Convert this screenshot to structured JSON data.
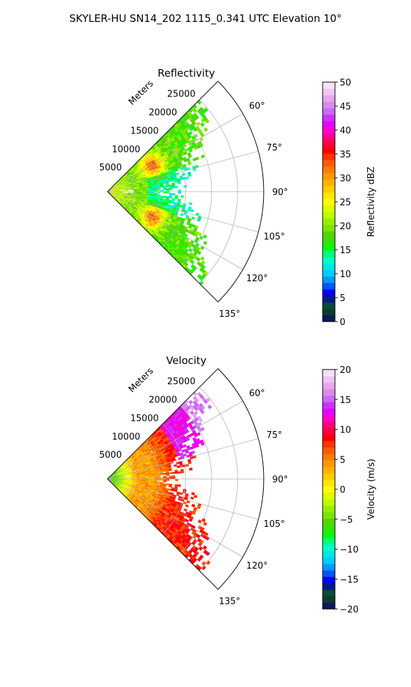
{
  "figure": {
    "title": "SKYLER-HU  SN14_202  1115_0.341 UTC Elevation 10°"
  },
  "chart_data": [
    {
      "type": "heatmap",
      "title": "Reflectivity",
      "range_axis_label": "Meters",
      "range_ticks": [
        5000,
        10000,
        15000,
        20000,
        25000
      ],
      "range_tick_labels": [
        "5000",
        "10000",
        "15000",
        "20000",
        "25000"
      ],
      "rlim": [
        0,
        30000
      ],
      "azimuth_range_deg": [
        45,
        135
      ],
      "angle_ticks": [
        60,
        75,
        90,
        105,
        120,
        135
      ],
      "angle_tick_labels": [
        "60°",
        "75°",
        "90°",
        "105°",
        "120°",
        "135°"
      ],
      "grid": true,
      "colorbar": {
        "label": "Reflectivity dBZ",
        "range": [
          0,
          50
        ],
        "ticks": [
          0,
          5,
          10,
          15,
          20,
          25,
          30,
          35,
          40,
          45,
          50
        ],
        "tick_labels": [
          "0",
          "5",
          "10",
          "15",
          "20",
          "25",
          "30",
          "35",
          "40",
          "45",
          "50"
        ],
        "colors": [
          "#0a1a5c",
          "#0d3b2a",
          "#0a4a3a",
          "#001a8a",
          "#0000ff",
          "#0055ff",
          "#0099ff",
          "#00ccff",
          "#00e5e5",
          "#00ffc8",
          "#00ff7a",
          "#00ff00",
          "#33e600",
          "#55d400",
          "#7ae600",
          "#99ee00",
          "#bbff00",
          "#ddff00",
          "#ffff00",
          "#ffe600",
          "#ffcc00",
          "#ffb300",
          "#ff9900",
          "#ff7a00",
          "#ff5a00",
          "#ff3300",
          "#ff0000",
          "#ff0040",
          "#ff0080",
          "#ff00cc",
          "#e600ff",
          "#cc33ff",
          "#cc66ff",
          "#d98ce6",
          "#e6a6ee",
          "#f0c6f5",
          "#f8e0fa"
        ]
      }
    },
    {
      "type": "heatmap",
      "title": "Velocity",
      "range_axis_label": "Meters",
      "range_ticks": [
        5000,
        10000,
        15000,
        20000,
        25000
      ],
      "range_tick_labels": [
        "5000",
        "10000",
        "15000",
        "20000",
        "25000"
      ],
      "rlim": [
        0,
        30000
      ],
      "azimuth_range_deg": [
        45,
        135
      ],
      "angle_ticks": [
        60,
        75,
        90,
        105,
        120,
        135
      ],
      "angle_tick_labels": [
        "60°",
        "75°",
        "90°",
        "105°",
        "120°",
        "135°"
      ],
      "grid": true,
      "colorbar": {
        "label": "Velocity (m/s)",
        "range": [
          -20,
          20
        ],
        "ticks": [
          -20,
          -15,
          -10,
          -5,
          0,
          5,
          10,
          15,
          20
        ],
        "tick_labels": [
          "−20",
          "−15",
          "−10",
          "−5",
          "0",
          "5",
          "10",
          "15",
          "20"
        ],
        "colors": [
          "#0a1a5c",
          "#0d3b2a",
          "#0a4a3a",
          "#001a8a",
          "#0000ff",
          "#0055ff",
          "#0099ff",
          "#00ccff",
          "#00e5e5",
          "#00ffc8",
          "#00ff7a",
          "#00ff00",
          "#33e600",
          "#55d400",
          "#7ae600",
          "#99ee00",
          "#bbff00",
          "#ddff00",
          "#ffff00",
          "#ffe600",
          "#ffcc00",
          "#ffb300",
          "#ff9900",
          "#ff7a00",
          "#ff5a00",
          "#ff3300",
          "#ff0000",
          "#ff0040",
          "#ff0080",
          "#ff00cc",
          "#e600ff",
          "#cc33ff",
          "#cc66ff",
          "#d98ce6",
          "#e6a6ee",
          "#f0c6f5",
          "#f8e0fa"
        ]
      }
    }
  ]
}
